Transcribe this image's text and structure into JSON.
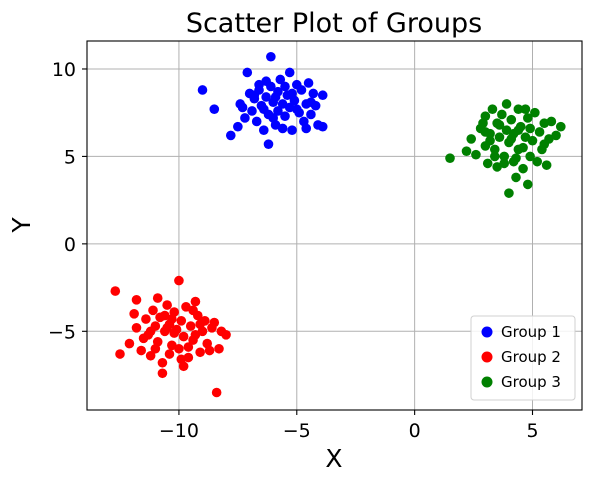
{
  "chart_data": {
    "type": "scatter",
    "title": "Scatter Plot of Groups",
    "xlabel": "X",
    "ylabel": "Y",
    "xlim": [
      -13.9,
      7.1
    ],
    "ylim": [
      -9.5,
      11.6
    ],
    "x_ticks": [
      -10,
      -5,
      0,
      5
    ],
    "x_tick_labels": [
      "−10",
      "−5",
      "0",
      "5"
    ],
    "y_ticks": [
      -5,
      0,
      5,
      10
    ],
    "y_tick_labels": [
      "−5",
      "0",
      "5",
      "10"
    ],
    "grid": true,
    "legend_position": "lower-right",
    "series": [
      {
        "name": "Group 1",
        "color": "#0000ff",
        "points": [
          [
            -6.1,
            10.7
          ],
          [
            -9.0,
            8.8
          ],
          [
            -8.5,
            7.7
          ],
          [
            -7.8,
            6.2
          ],
          [
            -7.5,
            6.7
          ],
          [
            -7.2,
            7.2
          ],
          [
            -7.4,
            8.0
          ],
          [
            -7.1,
            9.8
          ],
          [
            -7.0,
            8.6
          ],
          [
            -6.9,
            7.6
          ],
          [
            -6.8,
            8.3
          ],
          [
            -6.7,
            7.0
          ],
          [
            -6.6,
            8.8
          ],
          [
            -6.5,
            7.9
          ],
          [
            -6.4,
            6.5
          ],
          [
            -6.3,
            8.4
          ],
          [
            -6.2,
            5.7
          ],
          [
            -6.2,
            7.4
          ],
          [
            -6.1,
            9.0
          ],
          [
            -6.0,
            8.1
          ],
          [
            -5.9,
            6.8
          ],
          [
            -5.8,
            8.7
          ],
          [
            -5.8,
            7.6
          ],
          [
            -5.7,
            9.4
          ],
          [
            -5.6,
            8.0
          ],
          [
            -5.5,
            7.3
          ],
          [
            -5.5,
            9.0
          ],
          [
            -5.4,
            8.5
          ],
          [
            -5.3,
            7.8
          ],
          [
            -5.2,
            6.5
          ],
          [
            -5.1,
            8.2
          ],
          [
            -5.0,
            9.1
          ],
          [
            -4.9,
            7.5
          ],
          [
            -4.8,
            8.8
          ],
          [
            -4.7,
            7.0
          ],
          [
            -4.6,
            8.0
          ],
          [
            -4.5,
            9.2
          ],
          [
            -4.4,
            7.4
          ],
          [
            -4.3,
            8.6
          ],
          [
            -4.2,
            7.9
          ],
          [
            -4.1,
            6.8
          ],
          [
            -3.9,
            8.5
          ],
          [
            -3.9,
            6.7
          ],
          [
            -5.3,
            9.8
          ],
          [
            -6.6,
            9.1
          ],
          [
            -7.3,
            7.8
          ],
          [
            -6.0,
            7.2
          ],
          [
            -5.6,
            6.6
          ],
          [
            -6.8,
            8.5
          ],
          [
            -5.0,
            7.7
          ],
          [
            -4.6,
            6.6
          ],
          [
            -6.4,
            7.7
          ],
          [
            -5.9,
            8.4
          ],
          [
            -6.3,
            9.3
          ],
          [
            -5.2,
            8.6
          ],
          [
            -4.4,
            8.1
          ]
        ]
      },
      {
        "name": "Group 2",
        "color": "#ff0000",
        "points": [
          [
            -12.7,
            -2.7
          ],
          [
            -12.5,
            -6.3
          ],
          [
            -12.1,
            -5.7
          ],
          [
            -11.8,
            -3.2
          ],
          [
            -11.8,
            -4.8
          ],
          [
            -11.6,
            -6.1
          ],
          [
            -11.4,
            -4.3
          ],
          [
            -11.3,
            -5.2
          ],
          [
            -11.2,
            -6.4
          ],
          [
            -11.1,
            -3.8
          ],
          [
            -11.0,
            -4.7
          ],
          [
            -10.9,
            -5.6
          ],
          [
            -10.8,
            -4.2
          ],
          [
            -10.7,
            -6.8
          ],
          [
            -10.6,
            -5.0
          ],
          [
            -10.5,
            -3.5
          ],
          [
            -10.4,
            -4.6
          ],
          [
            -10.3,
            -5.8
          ],
          [
            -10.2,
            -3.9
          ],
          [
            -10.1,
            -4.9
          ],
          [
            -10.0,
            -2.1
          ],
          [
            -10.0,
            -6.0
          ],
          [
            -9.9,
            -4.4
          ],
          [
            -9.8,
            -5.3
          ],
          [
            -9.7,
            -3.6
          ],
          [
            -9.6,
            -6.5
          ],
          [
            -9.5,
            -4.7
          ],
          [
            -9.4,
            -5.5
          ],
          [
            -9.3,
            -3.3
          ],
          [
            -9.2,
            -4.1
          ],
          [
            -9.1,
            -6.2
          ],
          [
            -9.0,
            -5.0
          ],
          [
            -8.9,
            -4.4
          ],
          [
            -8.8,
            -5.7
          ],
          [
            -8.7,
            -6.1
          ],
          [
            -8.5,
            -4.5
          ],
          [
            -8.4,
            -8.5
          ],
          [
            -8.3,
            -6.0
          ],
          [
            -8.2,
            -5.0
          ],
          [
            -8.0,
            -5.2
          ],
          [
            -10.7,
            -7.4
          ],
          [
            -11.9,
            -4.0
          ],
          [
            -10.4,
            -6.3
          ],
          [
            -9.8,
            -7.0
          ],
          [
            -10.9,
            -3.1
          ],
          [
            -11.5,
            -5.4
          ],
          [
            -9.4,
            -3.8
          ],
          [
            -10.2,
            -5.1
          ],
          [
            -10.6,
            -4.1
          ],
          [
            -9.1,
            -4.6
          ],
          [
            -8.6,
            -4.8
          ],
          [
            -11.2,
            -5.0
          ],
          [
            -9.9,
            -6.6
          ],
          [
            -10.5,
            -4.8
          ],
          [
            -9.6,
            -5.9
          ],
          [
            -11.0,
            -6.0
          ],
          [
            -9.3,
            -5.2
          ],
          [
            -10.3,
            -4.3
          ]
        ]
      },
      {
        "name": "Group 3",
        "color": "#008000",
        "points": [
          [
            1.5,
            4.9
          ],
          [
            2.2,
            5.3
          ],
          [
            2.4,
            6.0
          ],
          [
            2.6,
            5.1
          ],
          [
            2.8,
            6.6
          ],
          [
            3.0,
            5.6
          ],
          [
            3.0,
            7.3
          ],
          [
            3.1,
            4.6
          ],
          [
            3.2,
            6.3
          ],
          [
            3.3,
            7.7
          ],
          [
            3.4,
            5.4
          ],
          [
            3.5,
            6.9
          ],
          [
            3.5,
            4.4
          ],
          [
            3.6,
            6.1
          ],
          [
            3.7,
            7.4
          ],
          [
            3.8,
            5.0
          ],
          [
            3.9,
            6.5
          ],
          [
            3.9,
            8.0
          ],
          [
            4.0,
            2.9
          ],
          [
            4.0,
            5.8
          ],
          [
            4.1,
            7.1
          ],
          [
            4.2,
            4.7
          ],
          [
            4.2,
            6.3
          ],
          [
            4.3,
            3.8
          ],
          [
            4.4,
            7.7
          ],
          [
            4.4,
            5.4
          ],
          [
            4.5,
            6.7
          ],
          [
            4.6,
            4.3
          ],
          [
            4.7,
            6.1
          ],
          [
            4.8,
            3.4
          ],
          [
            4.8,
            7.2
          ],
          [
            4.9,
            5.0
          ],
          [
            5.0,
            5.9
          ],
          [
            5.1,
            7.5
          ],
          [
            5.2,
            4.7
          ],
          [
            5.3,
            6.4
          ],
          [
            5.4,
            5.4
          ],
          [
            5.5,
            6.9
          ],
          [
            5.6,
            4.5
          ],
          [
            5.7,
            6.0
          ],
          [
            5.8,
            7.0
          ],
          [
            6.0,
            6.2
          ],
          [
            6.2,
            6.7
          ],
          [
            3.2,
            5.9
          ],
          [
            3.6,
            6.8
          ],
          [
            4.1,
            6.0
          ],
          [
            4.6,
            5.5
          ],
          [
            2.9,
            6.9
          ],
          [
            3.8,
            4.6
          ],
          [
            4.4,
            6.5
          ],
          [
            3.4,
            5.0
          ],
          [
            4.9,
            6.6
          ],
          [
            5.5,
            5.7
          ],
          [
            3.0,
            6.4
          ],
          [
            4.3,
            4.9
          ],
          [
            4.7,
            7.7
          ]
        ]
      }
    ]
  }
}
